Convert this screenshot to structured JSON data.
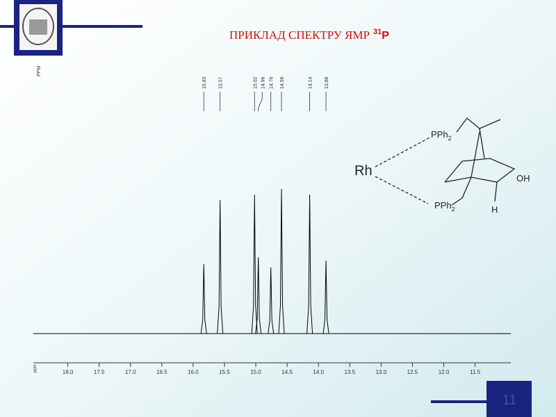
{
  "slide": {
    "title": "ПРИКЛАД СПЕКТРУ ЯМР",
    "title_superscript": "31",
    "title_element": "P",
    "page_number": "11"
  },
  "structure": {
    "metal": "Rh",
    "phosphine": "PPh",
    "subscript": "2",
    "hydroxyl": "OH",
    "hydrogen": "H"
  },
  "chart_data": {
    "type": "spectrum",
    "x_label": "PPM",
    "axis_unit": "ppm",
    "xlim": [
      18.55,
      10.93
    ],
    "xticks": [
      {
        "value": 18,
        "label": "18.0"
      },
      17.5,
      {
        "value": 17,
        "label": "17.0"
      },
      16.5,
      {
        "value": 16,
        "label": "16.0"
      },
      15.5,
      {
        "value": 15,
        "label": "15.0"
      },
      14.5,
      {
        "value": 14,
        "label": "14.0"
      },
      13.5,
      {
        "value": 13,
        "label": "13.0"
      },
      12.5,
      {
        "value": 12,
        "label": "12.0"
      },
      11.5
    ],
    "ylim": [
      0,
      220
    ],
    "peaks": [
      15.83,
      15.57,
      15.02,
      14.96,
      14.76,
      14.59,
      14.14,
      13.88
    ],
    "intensities": [
      100,
      192,
      200,
      110,
      95,
      208,
      200,
      105
    ],
    "color": "#000000"
  }
}
